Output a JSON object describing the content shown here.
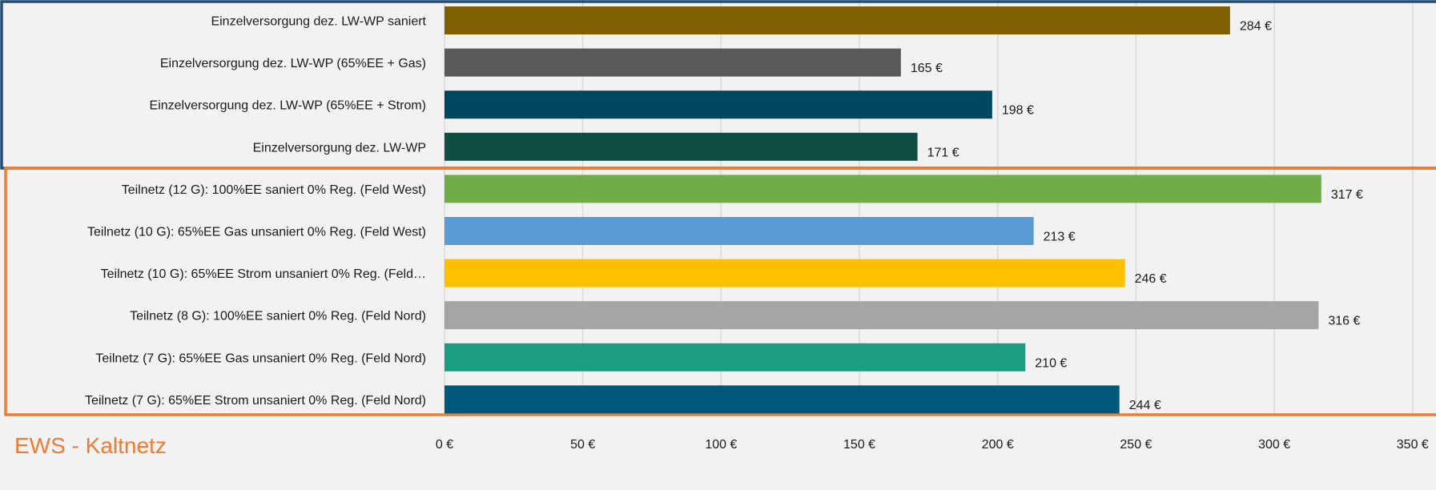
{
  "chart_data": {
    "type": "bar",
    "orientation": "horizontal",
    "categories": [
      "Einzelversorgung dez. LW-WP saniert",
      "Einzelversorgung dez. LW-WP (65%EE + Gas)",
      "Einzelversorgung dez. LW-WP (65%EE + Strom)",
      "Einzelversorgung dez. LW-WP",
      "Teilnetz (12 G): 100%EE saniert 0% Reg. (Feld West)",
      "Teilnetz (10 G): 65%EE Gas unsaniert 0% Reg. (Feld West)",
      "Teilnetz (10 G): 65%EE Strom unsaniert 0% Reg. (Feld…",
      "Teilnetz (8 G): 100%EE saniert 0% Reg. (Feld Nord)",
      "Teilnetz (7 G): 65%EE Gas unsaniert 0% Reg. (Feld Nord)",
      "Teilnetz (7 G): 65%EE Strom unsaniert 0% Reg. (Feld Nord)"
    ],
    "values": [
      284,
      165,
      198,
      171,
      317,
      213,
      246,
      316,
      210,
      244
    ],
    "value_labels": [
      "284 €",
      "165 €",
      "198 €",
      "171 €",
      "317 €",
      "213 €",
      "246 €",
      "316 €",
      "210 €",
      "244 €"
    ],
    "bar_colors": [
      "#7f6000",
      "#595959",
      "#00465f",
      "#0f4f43",
      "#70ad47",
      "#5b9bd5",
      "#ffc000",
      "#a5a5a5",
      "#1b9e7f",
      "#00587a"
    ],
    "xlim": [
      0,
      350
    ],
    "xticks": [
      0,
      50,
      100,
      150,
      200,
      250,
      300,
      350
    ],
    "xtick_labels": [
      "0 €",
      "50 €",
      "100 €",
      "150 €",
      "200 €",
      "250 €",
      "300 €",
      "350 €"
    ],
    "grid": true,
    "title": "",
    "xlabel": "",
    "ylabel": ""
  },
  "group_label": "EWS - Kaltnetz",
  "colors": {
    "background": "#f2f2f2",
    "grid": "#d9d9d9",
    "group_box_blue": "#1f4e79",
    "group_box_orange": "#ed7d31",
    "group_title": "#ed7d31"
  }
}
